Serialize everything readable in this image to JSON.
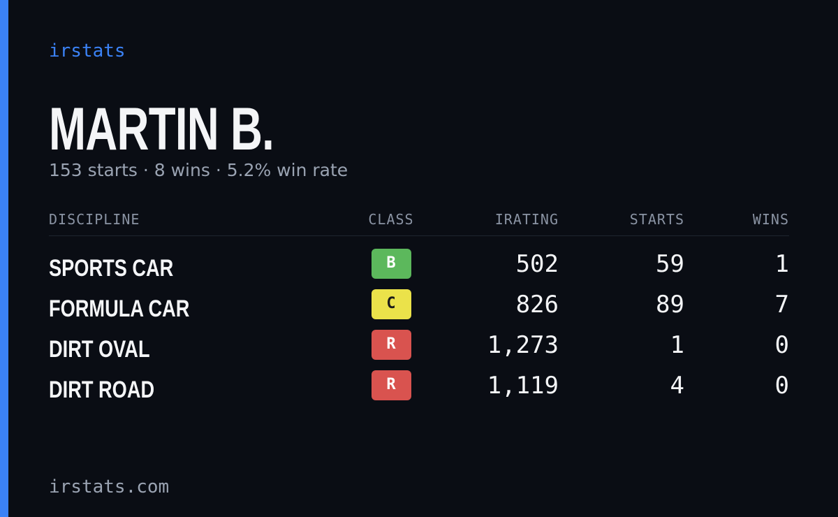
{
  "brand": "irstats",
  "driver": {
    "name": "MARTIN B.",
    "summary": "153 starts · 8 wins · 5.2% win rate"
  },
  "table": {
    "headers": [
      "DISCIPLINE",
      "CLASS",
      "IRATING",
      "STARTS",
      "WINS"
    ],
    "rows": [
      {
        "discipline": "SPORTS CAR",
        "class": "B",
        "badge_color": "#5cb85c",
        "irating": "502",
        "starts": "59",
        "wins": "1"
      },
      {
        "discipline": "FORMULA CAR",
        "class": "C",
        "badge_color": "#ebe24a",
        "irating": "826",
        "starts": "89",
        "wins": "7"
      },
      {
        "discipline": "DIRT OVAL",
        "class": "R",
        "badge_color": "#d9534f",
        "irating": "1,273",
        "starts": "1",
        "wins": "0"
      },
      {
        "discipline": "DIRT ROAD",
        "class": "R",
        "badge_color": "#d9534f",
        "irating": "1,119",
        "starts": "4",
        "wins": "0"
      }
    ]
  },
  "footer": "irstats.com"
}
